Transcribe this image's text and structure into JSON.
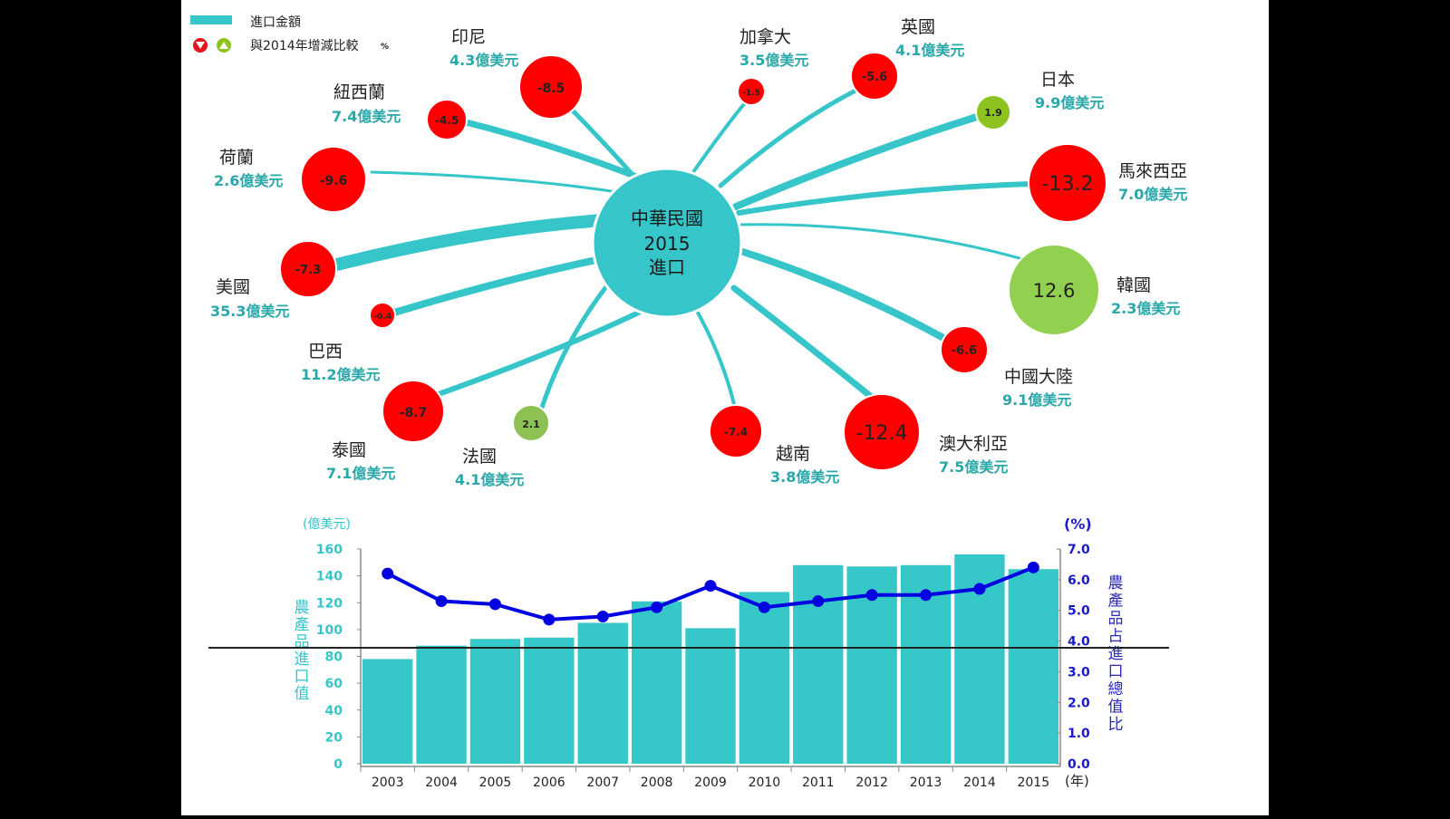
{
  "legend": {
    "line_label": "進口金額",
    "change_label": "與2014年增減比較",
    "change_unit": "%",
    "line_color": "#36C5C9",
    "down_color": "#E8141B",
    "up_color": "#8DC21F"
  },
  "center": {
    "line1": "中華民國",
    "line2": "2015",
    "line3": "進口",
    "color": "#36C5C9"
  },
  "countries": [
    {
      "name": "美國",
      "amount": "35.3億美元",
      "change": "-7.3"
    },
    {
      "name": "巴西",
      "amount": "11.2億美元",
      "change": "-0.4"
    },
    {
      "name": "日本",
      "amount": "9.9億美元",
      "change": "1.9"
    },
    {
      "name": "中國大陸",
      "amount": "9.1億美元",
      "change": "-6.6"
    },
    {
      "name": "澳大利亞",
      "amount": "7.5億美元",
      "change": "-12.4"
    },
    {
      "name": "紐西蘭",
      "amount": "7.4億美元",
      "change": "-4.5"
    },
    {
      "name": "泰國",
      "amount": "7.1億美元",
      "change": "-8.7"
    },
    {
      "name": "馬來西亞",
      "amount": "7.0億美元",
      "change": "-13.2"
    },
    {
      "name": "印尼",
      "amount": "4.3億美元",
      "change": "-8.5"
    },
    {
      "name": "英國",
      "amount": "4.1億美元",
      "change": "-5.6"
    },
    {
      "name": "法國",
      "amount": "4.1億美元",
      "change": "2.1"
    },
    {
      "name": "越南",
      "amount": "3.8億美元",
      "change": "-7.4"
    },
    {
      "name": "加拿大",
      "amount": "3.5億美元",
      "change": "-1.5"
    },
    {
      "name": "荷蘭",
      "amount": "2.6億美元",
      "change": "-9.6"
    },
    {
      "name": "韓國",
      "amount": "2.3億美元",
      "change": "12.6"
    }
  ],
  "bottom_chart": {
    "left_unit": "(億美元)",
    "right_unit": "(%)",
    "left_label": "農產品進口值",
    "right_label": "農產品占進口總值比",
    "x_unit": "(年)",
    "left_ticks": [
      "0",
      "20",
      "40",
      "60",
      "80",
      "100",
      "120",
      "140",
      "160"
    ],
    "right_ticks": [
      "0.0",
      "1.0",
      "2.0",
      "3.0",
      "4.0",
      "5.0",
      "6.0",
      "7.0"
    ],
    "years": [
      "2003",
      "2004",
      "2005",
      "2006",
      "2007",
      "2008",
      "2009",
      "2010",
      "2011",
      "2012",
      "2013",
      "2014",
      "2015"
    ]
  },
  "chart_data": [
    {
      "type": "bubble-radial",
      "title": "中華民國2015進口",
      "legend": [
        "進口金額 (line thickness)",
        "與2014年增減比較 % (bubble: red=decrease, green=increase)"
      ],
      "categories": [
        "美國",
        "巴西",
        "日本",
        "中國大陸",
        "澳大利亞",
        "紐西蘭",
        "泰國",
        "馬來西亞",
        "印尼",
        "英國",
        "法國",
        "越南",
        "加拿大",
        "荷蘭",
        "韓國"
      ],
      "series": [
        {
          "name": "進口金額(億美元)",
          "values": [
            35.3,
            11.2,
            9.9,
            9.1,
            7.5,
            7.4,
            7.1,
            7.0,
            4.3,
            4.1,
            4.1,
            3.8,
            3.5,
            2.6,
            2.3
          ]
        },
        {
          "name": "與2014年增減比較(%)",
          "values": [
            -7.3,
            -0.4,
            1.9,
            -6.6,
            -12.4,
            -4.5,
            -8.7,
            -13.2,
            -8.5,
            -5.6,
            2.1,
            -7.4,
            -1.5,
            -9.6,
            12.6
          ]
        }
      ]
    },
    {
      "type": "bar+line",
      "title": "",
      "xlabel": "(年)",
      "ylabel": "農產品進口值 (億美元)",
      "y2label": "農產品占進口總值比 (%)",
      "categories": [
        "2003",
        "2004",
        "2005",
        "2006",
        "2007",
        "2008",
        "2009",
        "2010",
        "2011",
        "2012",
        "2013",
        "2014",
        "2015"
      ],
      "series": [
        {
          "name": "農產品進口值",
          "type": "bar",
          "axis": "left",
          "values": [
            78,
            88,
            93,
            94,
            105,
            121,
            101,
            128,
            148,
            147,
            148,
            156,
            145
          ]
        },
        {
          "name": "農產品占進口總值比",
          "type": "line",
          "axis": "right",
          "values": [
            6.2,
            5.3,
            5.2,
            4.7,
            4.8,
            5.1,
            5.8,
            5.1,
            5.3,
            5.5,
            5.5,
            5.7,
            6.4
          ]
        }
      ],
      "ylim": [
        0,
        160
      ],
      "y2lim": [
        0,
        7.0
      ],
      "grid": false
    }
  ]
}
